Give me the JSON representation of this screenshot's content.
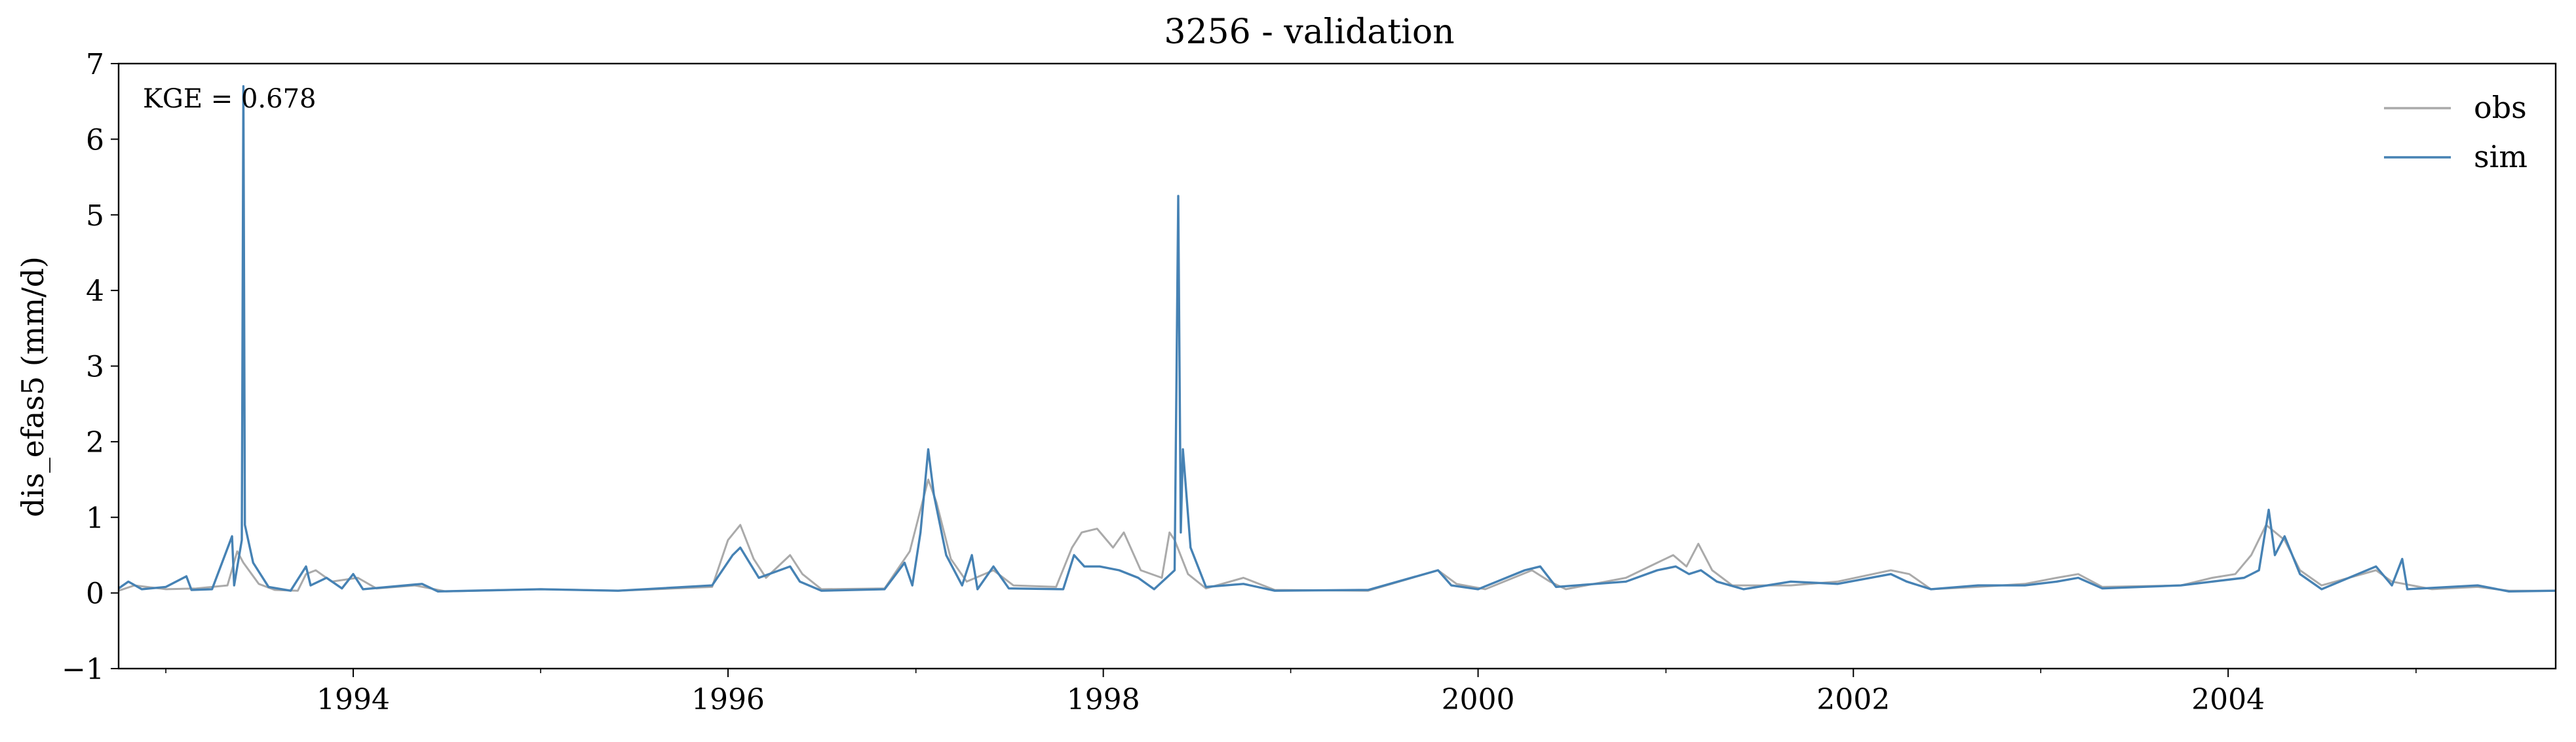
{
  "chart_data": {
    "type": "line",
    "title": "3256 - validation",
    "xlabel": "",
    "ylabel": "dis_efas5 (mm/d)",
    "xlim": [
      "1992-10-01",
      "2005-09-30"
    ],
    "ylim": [
      -1,
      7
    ],
    "yticks": [
      -1,
      0,
      1,
      2,
      3,
      4,
      5,
      6,
      7
    ],
    "ytick_labels": [
      "−1",
      "0",
      "1",
      "2",
      "3",
      "4",
      "5",
      "6",
      "7"
    ],
    "xticks": [
      {
        "date": "1994-01-01",
        "label": "1994"
      },
      {
        "date": "1996-01-01",
        "label": "1996"
      },
      {
        "date": "1998-01-01",
        "label": "1998"
      },
      {
        "date": "2000-01-01",
        "label": "2000"
      },
      {
        "date": "2002-01-01",
        "label": "2002"
      },
      {
        "date": "2004-01-01",
        "label": "2004"
      }
    ],
    "xminor_ticks": [
      "1993-01-01",
      "1995-01-01",
      "1997-01-01",
      "1999-01-01",
      "2001-01-01",
      "2003-01-01",
      "2005-01-01"
    ],
    "annotation": "KGE = 0.678",
    "legend_position": "top-right",
    "grid": false,
    "series": [
      {
        "name": "obs",
        "color": "#aaaaaa",
        "points": [
          [
            "1992-10-01",
            0.03
          ],
          [
            "1992-11-01",
            0.1
          ],
          [
            "1993-01-01",
            0.05
          ],
          [
            "1993-03-01",
            0.06
          ],
          [
            "1993-05-01",
            0.1
          ],
          [
            "1993-05-20",
            0.55
          ],
          [
            "1993-06-01",
            0.4
          ],
          [
            "1993-07-01",
            0.12
          ],
          [
            "1993-08-01",
            0.04
          ],
          [
            "1993-09-15",
            0.03
          ],
          [
            "1993-10-01",
            0.25
          ],
          [
            "1993-10-20",
            0.3
          ],
          [
            "1993-11-20",
            0.15
          ],
          [
            "1994-01-10",
            0.2
          ],
          [
            "1994-02-15",
            0.06
          ],
          [
            "1994-05-01",
            0.1
          ],
          [
            "1994-07-01",
            0.02
          ],
          [
            "1995-01-01",
            0.05
          ],
          [
            "1995-06-01",
            0.03
          ],
          [
            "1995-12-01",
            0.08
          ],
          [
            "1996-01-01",
            0.7
          ],
          [
            "1996-01-25",
            0.9
          ],
          [
            "1996-02-20",
            0.45
          ],
          [
            "1996-03-15",
            0.2
          ],
          [
            "1996-05-01",
            0.5
          ],
          [
            "1996-05-25",
            0.25
          ],
          [
            "1996-07-01",
            0.05
          ],
          [
            "1996-11-01",
            0.06
          ],
          [
            "1996-12-20",
            0.55
          ],
          [
            "1997-01-25",
            1.5
          ],
          [
            "1997-02-10",
            1.2
          ],
          [
            "1997-03-10",
            0.45
          ],
          [
            "1997-04-10",
            0.15
          ],
          [
            "1997-06-01",
            0.3
          ],
          [
            "1997-07-10",
            0.1
          ],
          [
            "1997-10-01",
            0.08
          ],
          [
            "1997-11-01",
            0.6
          ],
          [
            "1997-11-20",
            0.8
          ],
          [
            "1997-12-20",
            0.85
          ],
          [
            "1998-01-20",
            0.6
          ],
          [
            "1998-02-10",
            0.8
          ],
          [
            "1998-03-15",
            0.3
          ],
          [
            "1998-04-25",
            0.2
          ],
          [
            "1998-05-10",
            0.8
          ],
          [
            "1998-05-20",
            0.7
          ],
          [
            "1998-06-15",
            0.25
          ],
          [
            "1998-07-20",
            0.06
          ],
          [
            "1998-10-01",
            0.2
          ],
          [
            "1998-12-01",
            0.04
          ],
          [
            "1999-06-01",
            0.03
          ],
          [
            "1999-10-15",
            0.3
          ],
          [
            "1999-11-20",
            0.12
          ],
          [
            "2000-01-15",
            0.05
          ],
          [
            "2000-04-15",
            0.3
          ],
          [
            "2000-05-20",
            0.15
          ],
          [
            "2000-06-20",
            0.05
          ],
          [
            "2000-10-15",
            0.2
          ],
          [
            "2000-12-15",
            0.4
          ],
          [
            "2001-01-15",
            0.5
          ],
          [
            "2001-02-10",
            0.35
          ],
          [
            "2001-03-05",
            0.65
          ],
          [
            "2001-04-01",
            0.3
          ],
          [
            "2001-05-10",
            0.1
          ],
          [
            "2001-09-01",
            0.1
          ],
          [
            "2001-12-01",
            0.15
          ],
          [
            "2002-03-15",
            0.3
          ],
          [
            "2002-04-20",
            0.25
          ],
          [
            "2002-06-01",
            0.05
          ],
          [
            "2002-09-01",
            0.08
          ],
          [
            "2002-12-01",
            0.12
          ],
          [
            "2003-02-01",
            0.2
          ],
          [
            "2003-03-15",
            0.25
          ],
          [
            "2003-05-01",
            0.08
          ],
          [
            "2003-10-01",
            0.1
          ],
          [
            "2003-12-01",
            0.2
          ],
          [
            "2004-01-15",
            0.25
          ],
          [
            "2004-02-15",
            0.5
          ],
          [
            "2004-03-15",
            0.9
          ],
          [
            "2004-04-20",
            0.7
          ],
          [
            "2004-05-20",
            0.3
          ],
          [
            "2004-07-01",
            0.1
          ],
          [
            "2004-10-15",
            0.3
          ],
          [
            "2004-11-15",
            0.15
          ],
          [
            "2005-02-01",
            0.05
          ],
          [
            "2005-05-01",
            0.08
          ],
          [
            "2005-07-01",
            0.03
          ],
          [
            "2005-09-30",
            0.03
          ]
        ]
      },
      {
        "name": "sim",
        "color": "#4682b4",
        "points": [
          [
            "1992-10-01",
            0.06
          ],
          [
            "1992-10-20",
            0.15
          ],
          [
            "1992-11-15",
            0.05
          ],
          [
            "1993-01-01",
            0.08
          ],
          [
            "1993-02-10",
            0.22
          ],
          [
            "1993-02-20",
            0.04
          ],
          [
            "1993-04-01",
            0.05
          ],
          [
            "1993-05-10",
            0.75
          ],
          [
            "1993-05-14",
            0.1
          ],
          [
            "1993-05-29",
            0.7
          ],
          [
            "1993-06-01",
            6.7
          ],
          [
            "1993-06-04",
            0.9
          ],
          [
            "1993-06-20",
            0.4
          ],
          [
            "1993-07-20",
            0.08
          ],
          [
            "1993-09-01",
            0.03
          ],
          [
            "1993-10-01",
            0.35
          ],
          [
            "1993-10-10",
            0.1
          ],
          [
            "1993-11-10",
            0.2
          ],
          [
            "1993-12-10",
            0.06
          ],
          [
            "1994-01-01",
            0.25
          ],
          [
            "1994-01-20",
            0.05
          ],
          [
            "1994-05-15",
            0.12
          ],
          [
            "1994-06-15",
            0.02
          ],
          [
            "1995-01-01",
            0.05
          ],
          [
            "1995-06-01",
            0.03
          ],
          [
            "1995-12-01",
            0.1
          ],
          [
            "1996-01-10",
            0.5
          ],
          [
            "1996-01-25",
            0.6
          ],
          [
            "1996-03-01",
            0.2
          ],
          [
            "1996-05-01",
            0.35
          ],
          [
            "1996-05-20",
            0.15
          ],
          [
            "1996-07-01",
            0.03
          ],
          [
            "1996-11-01",
            0.05
          ],
          [
            "1996-12-10",
            0.4
          ],
          [
            "1996-12-25",
            0.1
          ],
          [
            "1997-01-10",
            0.8
          ],
          [
            "1997-01-25",
            1.9
          ],
          [
            "1997-02-05",
            1.3
          ],
          [
            "1997-03-01",
            0.5
          ],
          [
            "1997-04-01",
            0.1
          ],
          [
            "1997-04-20",
            0.5
          ],
          [
            "1997-05-01",
            0.05
          ],
          [
            "1997-06-01",
            0.35
          ],
          [
            "1997-07-01",
            0.06
          ],
          [
            "1997-10-15",
            0.05
          ],
          [
            "1997-11-05",
            0.5
          ],
          [
            "1997-11-25",
            0.35
          ],
          [
            "1997-12-25",
            0.35
          ],
          [
            "1998-02-01",
            0.3
          ],
          [
            "1998-03-10",
            0.2
          ],
          [
            "1998-04-10",
            0.05
          ],
          [
            "1998-05-20",
            0.3
          ],
          [
            "1998-05-27",
            5.25
          ],
          [
            "1998-06-01",
            0.8
          ],
          [
            "1998-06-05",
            1.9
          ],
          [
            "1998-06-20",
            0.6
          ],
          [
            "1998-07-20",
            0.08
          ],
          [
            "1998-10-01",
            0.12
          ],
          [
            "1998-12-01",
            0.03
          ],
          [
            "1999-06-01",
            0.04
          ],
          [
            "1999-10-15",
            0.3
          ],
          [
            "1999-11-10",
            0.1
          ],
          [
            "2000-01-01",
            0.05
          ],
          [
            "2000-04-01",
            0.3
          ],
          [
            "2000-05-01",
            0.35
          ],
          [
            "2000-06-01",
            0.08
          ],
          [
            "2000-10-15",
            0.15
          ],
          [
            "2000-12-15",
            0.3
          ],
          [
            "2001-01-20",
            0.35
          ],
          [
            "2001-02-15",
            0.25
          ],
          [
            "2001-03-10",
            0.3
          ],
          [
            "2001-04-10",
            0.15
          ],
          [
            "2001-06-01",
            0.05
          ],
          [
            "2001-09-01",
            0.15
          ],
          [
            "2001-12-01",
            0.12
          ],
          [
            "2002-03-15",
            0.25
          ],
          [
            "2002-04-15",
            0.15
          ],
          [
            "2002-06-01",
            0.05
          ],
          [
            "2002-09-01",
            0.1
          ],
          [
            "2002-12-01",
            0.1
          ],
          [
            "2003-02-01",
            0.15
          ],
          [
            "2003-03-15",
            0.2
          ],
          [
            "2003-05-01",
            0.06
          ],
          [
            "2003-10-01",
            0.1
          ],
          [
            "2003-12-01",
            0.15
          ],
          [
            "2004-02-01",
            0.2
          ],
          [
            "2004-03-01",
            0.3
          ],
          [
            "2004-03-20",
            1.1
          ],
          [
            "2004-04-01",
            0.5
          ],
          [
            "2004-04-20",
            0.75
          ],
          [
            "2004-05-20",
            0.25
          ],
          [
            "2004-07-01",
            0.05
          ],
          [
            "2004-10-15",
            0.35
          ],
          [
            "2004-11-15",
            0.1
          ],
          [
            "2004-12-05",
            0.45
          ],
          [
            "2004-12-15",
            0.05
          ],
          [
            "2005-05-01",
            0.1
          ],
          [
            "2005-07-01",
            0.02
          ],
          [
            "2005-09-30",
            0.03
          ]
        ]
      }
    ]
  }
}
